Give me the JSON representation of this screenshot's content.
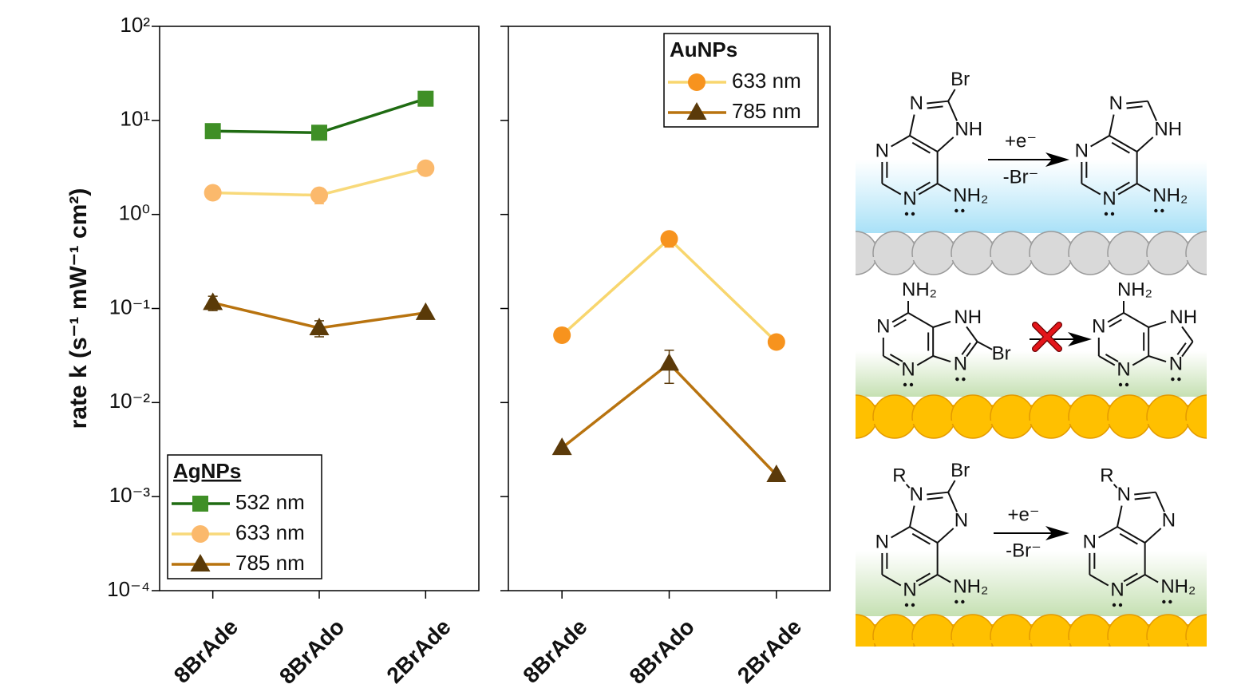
{
  "chart_data": [
    {
      "type": "line",
      "y_label": "rate k (s⁻¹ mW⁻¹ cm²)",
      "legend_title": "AgNPs",
      "legend_title_underline": true,
      "legend": "lower left",
      "log_y": true,
      "ylim": [
        0.0001,
        100
      ],
      "yticks": [
        {
          "value": 0.0001,
          "label": "10⁻⁴"
        },
        {
          "value": 0.001,
          "label": "10⁻³"
        },
        {
          "value": 0.01,
          "label": "10⁻²"
        },
        {
          "value": 0.1,
          "label": "10⁻¹"
        },
        {
          "value": 1,
          "label": "10⁰"
        },
        {
          "value": 10,
          "label": "10¹"
        },
        {
          "value": 100,
          "label": "10²"
        }
      ],
      "categories": [
        "8BrAde",
        "8BrAdo",
        "2BrAde"
      ],
      "series": [
        {
          "name": "532 nm",
          "color": "#1f6b12",
          "marker": "square",
          "marker_color": "#3f8f26",
          "values": [
            7.7,
            7.4,
            17
          ],
          "errors": [
            null,
            0.9,
            null
          ]
        },
        {
          "name": "633 nm",
          "color": "#f8d97a",
          "marker": "circle",
          "marker_color": "#fbb96c",
          "values": [
            1.7,
            1.6,
            3.1
          ],
          "errors": [
            null,
            0.3,
            0.5
          ]
        },
        {
          "name": "785 nm",
          "color": "#b8730f",
          "marker": "triangle",
          "marker_color": "#5a3a08",
          "values": [
            0.115,
            0.062,
            0.09
          ],
          "errors": [
            0.02,
            0.012,
            null
          ]
        }
      ]
    },
    {
      "type": "line",
      "legend_title": "AuNPs",
      "legend_title_underline": false,
      "legend": "upper right",
      "log_y": true,
      "ylim": [
        0.0001,
        100
      ],
      "yticks": [
        0.0001,
        0.001,
        0.01,
        0.1,
        1,
        10,
        100
      ],
      "categories": [
        "8BrAde",
        "8BrAdo",
        "2BrAde"
      ],
      "series": [
        {
          "name": "633 nm",
          "color": "#f8d66e",
          "marker": "circle",
          "marker_color": "#f7931e",
          "values": [
            0.052,
            0.55,
            0.044
          ],
          "errors": [
            null,
            0.1,
            null
          ]
        },
        {
          "name": "785 nm",
          "color": "#b8730f",
          "marker": "triangle",
          "marker_color": "#5b3a0a",
          "values": [
            0.0033,
            0.026,
            0.0017
          ],
          "errors": [
            null,
            0.01,
            null
          ]
        }
      ]
    }
  ],
  "schemes": [
    {
      "reactant": {
        "n_left": "N",
        "n_bottom": "N",
        "amino": "NH₂",
        "n_five_a": "N",
        "n_five_b": "NH",
        "bromo": "Br"
      },
      "product": {
        "n_left": "N",
        "n_bottom": "N",
        "amino": "NH₂",
        "n_five_a": "N",
        "n_five_b": "NH"
      },
      "above_arrow": "+e⁻",
      "below_arrow": "-Br⁻"
    },
    {
      "reactant": {
        "amino": "NH₂",
        "n_left": "N",
        "n_bottom": "N",
        "n_five_a": "NH",
        "n_five_b": "N",
        "bromo": "Br"
      },
      "product": {
        "amino": "NH₂",
        "n_left": "N",
        "n_bottom": "N",
        "n_five_a": "NH",
        "n_five_b": "N"
      }
    },
    {
      "reactant": {
        "alkyl": "R",
        "n_left": "N",
        "n_bottom": "N",
        "amino": "NH₂",
        "n_five_a": "N",
        "n_five_b": "N",
        "bromo": "Br"
      },
      "product": {
        "alkyl": "R",
        "n_left": "N",
        "n_bottom": "N",
        "amino": "NH₂",
        "n_five_a": "N",
        "n_five_b": "N"
      },
      "above_arrow": "+e⁻",
      "below_arrow": "-Br⁻"
    }
  ]
}
